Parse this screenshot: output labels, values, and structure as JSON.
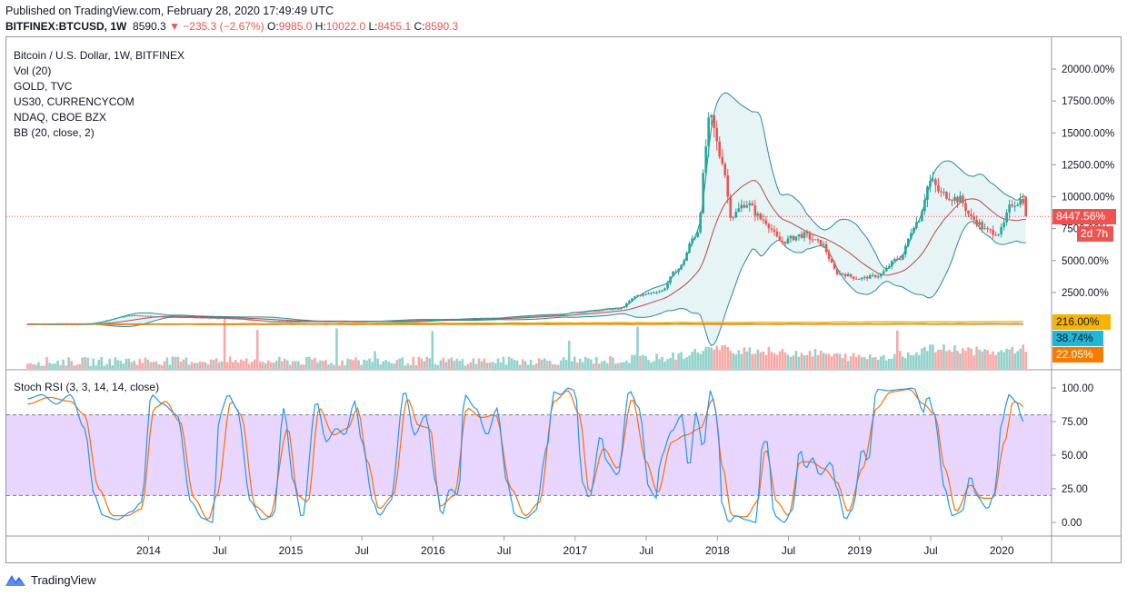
{
  "header": {
    "published": "Published on TradingView.com, February 28, 2020 17:49:49 UTC",
    "symbol": "BITFINEX:BTCUSD, 1W",
    "last": "8590.3",
    "change": "▼ −235.3 (−2.67%)",
    "o_label": "O:",
    "o": "9985.0",
    "h_label": "H:",
    "h": "10022.0",
    "l_label": "L:",
    "l": "8455.1",
    "c_label": "C:",
    "c": "8590.3"
  },
  "legend": [
    "Bitcoin / U.S. Dollar, 1W, BITFINEX",
    "Vol (20)",
    "GOLD, TVC",
    "US30, CURRENCYCOM",
    "NDAQ, CBOE BZX",
    "BB (20, close, 2)"
  ],
  "osc_legend": "Stoch RSI (3, 3, 14, 14, close)",
  "badges": {
    "price": "8447.56%",
    "countdown": "2d 7h",
    "gold": "216.00%",
    "us30": "38.74%",
    "ndaq": "22.05%"
  },
  "colors": {
    "up": "#26a69a",
    "down": "#ef5350",
    "bb": "#2a8a96",
    "bb_fill": "#e3f3f4",
    "basis": "#b34a4a",
    "gold": "#f5b400",
    "us30": "#21b5d6",
    "ndaq": "#f57c00",
    "k": "#2196f3",
    "d": "#ff6d00",
    "band": "#e1c8ff"
  },
  "brand": "TradingView",
  "chart_data": [
    {
      "type": "candlestick",
      "title": "Bitcoin / U.S. Dollar, 1W, BITFINEX",
      "y_axis_unit": "%",
      "y_ticks": [
        "20000.00%",
        "17500.00%",
        "15000.00%",
        "12500.00%",
        "10000.00%",
        "7500.00%",
        "5000.00%",
        "2500.00%"
      ],
      "x_ticks": [
        "2014",
        "Jul",
        "2015",
        "Jul",
        "2016",
        "Jul",
        "2017",
        "Jul",
        "2018",
        "Jul",
        "2019",
        "Jul",
        "2020"
      ],
      "ylim": [
        -100,
        21000
      ],
      "price_keyframes": [
        [
          2013.15,
          30
        ],
        [
          2013.55,
          40
        ],
        [
          2013.9,
          700
        ],
        [
          2014.1,
          600
        ],
        [
          2014.5,
          500
        ],
        [
          2014.9,
          250
        ],
        [
          2015.5,
          230
        ],
        [
          2015.9,
          350
        ],
        [
          2016.4,
          450
        ],
        [
          2016.6,
          620
        ],
        [
          2016.9,
          750
        ],
        [
          2017.0,
          950
        ],
        [
          2017.3,
          1200
        ],
        [
          2017.45,
          2300
        ],
        [
          2017.6,
          2600
        ],
        [
          2017.72,
          4300
        ],
        [
          2017.85,
          7000
        ],
        [
          2017.95,
          16000
        ],
        [
          2018.03,
          13000
        ],
        [
          2018.1,
          8500
        ],
        [
          2018.2,
          9500
        ],
        [
          2018.32,
          8200
        ],
        [
          2018.45,
          6500
        ],
        [
          2018.6,
          7000
        ],
        [
          2018.72,
          6400
        ],
        [
          2018.85,
          4000
        ],
        [
          2019.0,
          3600
        ],
        [
          2019.12,
          3800
        ],
        [
          2019.28,
          5200
        ],
        [
          2019.4,
          8000
        ],
        [
          2019.5,
          11200
        ],
        [
          2019.58,
          10200
        ],
        [
          2019.7,
          9800
        ],
        [
          2019.8,
          8200
        ],
        [
          2019.9,
          7300
        ],
        [
          2019.98,
          7200
        ],
        [
          2020.08,
          9500
        ],
        [
          2020.15,
          9800
        ],
        [
          2020.16,
          8447.56
        ]
      ],
      "series": [
        {
          "name": "Bitcoin / U.S. Dollar",
          "last": 8447.56
        },
        {
          "name": "BB (20, close, 2)",
          "params": "20, close, 2"
        },
        {
          "name": "GOLD, TVC",
          "last": 216.0
        },
        {
          "name": "US30, CURRENCYCOM",
          "last": 38.74
        },
        {
          "name": "NDAQ, CBOE BZX",
          "last": 22.05
        },
        {
          "name": "Vol (20)"
        }
      ]
    },
    {
      "type": "line",
      "title": "Stoch RSI (3, 3, 14, 14, close)",
      "y_ticks": [
        "100.00",
        "75.00",
        "50.00",
        "25.00",
        "0.00"
      ],
      "ylim": [
        -10,
        108
      ],
      "bands": [
        20,
        80
      ],
      "k_keyframes": [
        [
          2013.15,
          92
        ],
        [
          2013.25,
          95
        ],
        [
          2013.35,
          88
        ],
        [
          2013.45,
          95
        ],
        [
          2013.55,
          70
        ],
        [
          2013.62,
          20
        ],
        [
          2013.68,
          5
        ],
        [
          2013.78,
          2
        ],
        [
          2013.88,
          8
        ],
        [
          2013.95,
          15
        ],
        [
          2014.02,
          95
        ],
        [
          2014.1,
          88
        ],
        [
          2014.2,
          80
        ],
        [
          2014.3,
          15
        ],
        [
          2014.38,
          3
        ],
        [
          2014.45,
          0
        ],
        [
          2014.5,
          80
        ],
        [
          2014.56,
          95
        ],
        [
          2014.62,
          85
        ],
        [
          2014.72,
          15
        ],
        [
          2014.8,
          2
        ],
        [
          2014.88,
          5
        ],
        [
          2014.95,
          85
        ],
        [
          2015.02,
          30
        ],
        [
          2015.08,
          3
        ],
        [
          2015.18,
          90
        ],
        [
          2015.25,
          60
        ],
        [
          2015.32,
          70
        ],
        [
          2015.38,
          65
        ],
        [
          2015.45,
          90
        ],
        [
          2015.5,
          60
        ],
        [
          2015.58,
          15
        ],
        [
          2015.62,
          5
        ],
        [
          2015.7,
          15
        ],
        [
          2015.8,
          98
        ],
        [
          2015.87,
          65
        ],
        [
          2015.95,
          80
        ],
        [
          2016.02,
          30
        ],
        [
          2016.06,
          5
        ],
        [
          2016.12,
          25
        ],
        [
          2016.18,
          20
        ],
        [
          2016.22,
          95
        ],
        [
          2016.3,
          85
        ],
        [
          2016.38,
          65
        ],
        [
          2016.45,
          85
        ],
        [
          2016.52,
          30
        ],
        [
          2016.58,
          5
        ],
        [
          2016.65,
          3
        ],
        [
          2016.72,
          8
        ],
        [
          2016.8,
          55
        ],
        [
          2016.85,
          97
        ],
        [
          2016.9,
          95
        ],
        [
          2016.95,
          100
        ],
        [
          2017.0,
          98
        ],
        [
          2017.05,
          30
        ],
        [
          2017.1,
          18
        ],
        [
          2017.18,
          65
        ],
        [
          2017.22,
          45
        ],
        [
          2017.3,
          35
        ],
        [
          2017.38,
          98
        ],
        [
          2017.45,
          85
        ],
        [
          2017.52,
          25
        ],
        [
          2017.57,
          18
        ],
        [
          2017.6,
          48
        ],
        [
          2017.68,
          68
        ],
        [
          2017.75,
          80
        ],
        [
          2017.8,
          40
        ],
        [
          2017.85,
          82
        ],
        [
          2017.9,
          55
        ],
        [
          2017.95,
          98
        ],
        [
          2018.0,
          80
        ],
        [
          2018.03,
          15
        ],
        [
          2018.08,
          0
        ],
        [
          2018.13,
          5
        ],
        [
          2018.2,
          2
        ],
        [
          2018.27,
          0
        ],
        [
          2018.32,
          60
        ],
        [
          2018.35,
          60
        ],
        [
          2018.4,
          5
        ],
        [
          2018.47,
          0
        ],
        [
          2018.53,
          10
        ],
        [
          2018.58,
          55
        ],
        [
          2018.62,
          40
        ],
        [
          2018.67,
          48
        ],
        [
          2018.72,
          35
        ],
        [
          2018.8,
          45
        ],
        [
          2018.84,
          25
        ],
        [
          2018.9,
          2
        ],
        [
          2018.95,
          10
        ],
        [
          2019.02,
          55
        ],
        [
          2019.06,
          45
        ],
        [
          2019.12,
          99
        ],
        [
          2019.2,
          98
        ],
        [
          2019.3,
          99
        ],
        [
          2019.38,
          100
        ],
        [
          2019.45,
          82
        ],
        [
          2019.48,
          95
        ],
        [
          2019.52,
          82
        ],
        [
          2019.6,
          25
        ],
        [
          2019.65,
          5
        ],
        [
          2019.72,
          8
        ],
        [
          2019.78,
          35
        ],
        [
          2019.82,
          20
        ],
        [
          2019.9,
          10
        ],
        [
          2019.95,
          22
        ],
        [
          2020.0,
          75
        ],
        [
          2020.05,
          95
        ],
        [
          2020.1,
          90
        ],
        [
          2020.15,
          75
        ]
      ],
      "d_keyframes": [
        [
          2013.15,
          88
        ],
        [
          2013.3,
          93
        ],
        [
          2013.45,
          90
        ],
        [
          2013.55,
          80
        ],
        [
          2013.65,
          25
        ],
        [
          2013.75,
          5
        ],
        [
          2013.85,
          5
        ],
        [
          2013.95,
          10
        ],
        [
          2014.04,
          85
        ],
        [
          2014.12,
          90
        ],
        [
          2014.22,
          75
        ],
        [
          2014.32,
          18
        ],
        [
          2014.42,
          2
        ],
        [
          2014.48,
          20
        ],
        [
          2014.58,
          90
        ],
        [
          2014.65,
          80
        ],
        [
          2014.75,
          12
        ],
        [
          2014.85,
          4
        ],
        [
          2014.98,
          70
        ],
        [
          2015.05,
          20
        ],
        [
          2015.12,
          15
        ],
        [
          2015.2,
          85
        ],
        [
          2015.3,
          65
        ],
        [
          2015.4,
          70
        ],
        [
          2015.47,
          85
        ],
        [
          2015.54,
          45
        ],
        [
          2015.62,
          10
        ],
        [
          2015.72,
          20
        ],
        [
          2015.82,
          92
        ],
        [
          2015.9,
          72
        ],
        [
          2015.98,
          70
        ],
        [
          2016.05,
          12
        ],
        [
          2016.15,
          20
        ],
        [
          2016.24,
          85
        ],
        [
          2016.34,
          78
        ],
        [
          2016.44,
          80
        ],
        [
          2016.55,
          25
        ],
        [
          2016.65,
          5
        ],
        [
          2016.75,
          15
        ],
        [
          2016.85,
          90
        ],
        [
          2016.95,
          98
        ],
        [
          2017.03,
          80
        ],
        [
          2017.1,
          22
        ],
        [
          2017.2,
          55
        ],
        [
          2017.3,
          40
        ],
        [
          2017.4,
          92
        ],
        [
          2017.5,
          45
        ],
        [
          2017.58,
          22
        ],
        [
          2017.68,
          60
        ],
        [
          2017.78,
          65
        ],
        [
          2017.88,
          70
        ],
        [
          2017.97,
          92
        ],
        [
          2018.04,
          40
        ],
        [
          2018.1,
          5
        ],
        [
          2018.2,
          4
        ],
        [
          2018.28,
          15
        ],
        [
          2018.34,
          55
        ],
        [
          2018.42,
          15
        ],
        [
          2018.5,
          5
        ],
        [
          2018.58,
          45
        ],
        [
          2018.66,
          45
        ],
        [
          2018.75,
          40
        ],
        [
          2018.84,
          30
        ],
        [
          2018.92,
          8
        ],
        [
          2019.02,
          40
        ],
        [
          2019.12,
          85
        ],
        [
          2019.22,
          97
        ],
        [
          2019.35,
          99
        ],
        [
          2019.45,
          88
        ],
        [
          2019.53,
          80
        ],
        [
          2019.6,
          40
        ],
        [
          2019.68,
          8
        ],
        [
          2019.78,
          28
        ],
        [
          2019.86,
          18
        ],
        [
          2019.94,
          18
        ],
        [
          2020.02,
          60
        ],
        [
          2020.08,
          90
        ],
        [
          2020.14,
          88
        ],
        [
          2020.15,
          86
        ]
      ]
    }
  ]
}
